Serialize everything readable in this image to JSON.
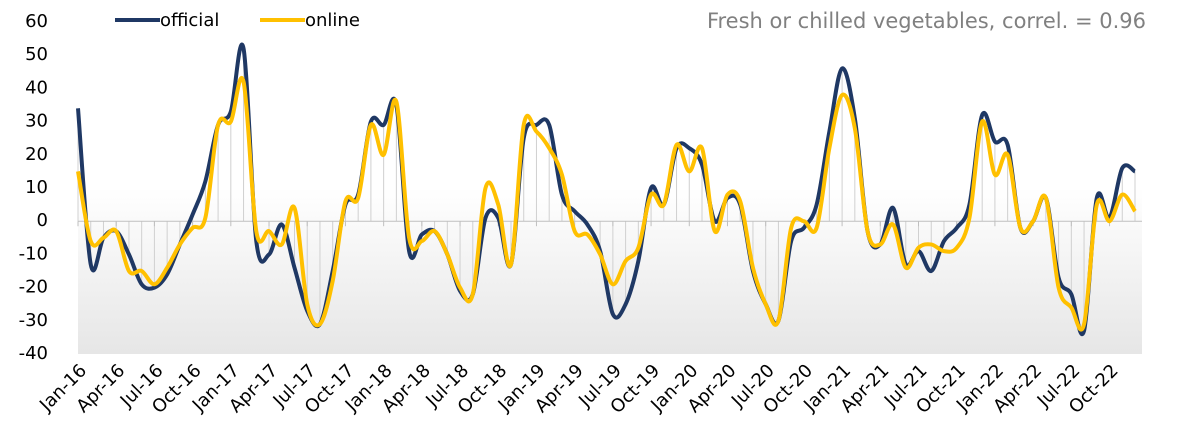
{
  "chart_data": {
    "type": "line",
    "title": "Fresh or chilled vegetables, correl. = 0.96",
    "categories": [
      "Jan-16",
      null,
      null,
      "Apr-16",
      null,
      null,
      "Jul-16",
      null,
      null,
      "Oct-16",
      null,
      null,
      "Jan-17",
      null,
      null,
      "Apr-17",
      null,
      null,
      "Jul-17",
      null,
      null,
      "Oct-17",
      null,
      null,
      "Jan-18",
      null,
      null,
      "Apr-18",
      null,
      null,
      "Jul-18",
      null,
      null,
      "Oct-18",
      null,
      null,
      "Jan-19",
      null,
      null,
      "Apr-19",
      null,
      null,
      "Jul-19",
      null,
      null,
      "Oct-19",
      null,
      null,
      "Jan-20",
      null,
      null,
      "Apr-20",
      null,
      null,
      "Jul-20",
      null,
      null,
      "Oct-20",
      null,
      null,
      "Jan-21",
      null,
      null,
      "Apr-21",
      null,
      null,
      "Jul-21",
      null,
      null,
      "Oct-21",
      null,
      null,
      "Jan-22",
      null,
      null,
      "Apr-22",
      null,
      null,
      "Jul-22",
      null,
      null,
      "Oct-22",
      null,
      null
    ],
    "series": [
      {
        "name": "official",
        "color": "#1f3864",
        "values": [
          34,
          -13,
          -5,
          -3,
          -10,
          -19,
          -20,
          -16,
          -7,
          2,
          12,
          29,
          33,
          52,
          -6,
          -10,
          -1,
          -14,
          -27,
          -31,
          -15,
          5,
          8,
          30,
          29,
          35,
          -9,
          -4,
          -3,
          -10,
          -21,
          -22,
          1,
          1,
          -13,
          25,
          29,
          29,
          8,
          3,
          -1,
          -9,
          -28,
          -25,
          -12,
          10,
          5,
          22,
          22,
          17,
          0,
          7,
          5,
          -15,
          -25,
          -30,
          -6,
          -2,
          5,
          27,
          46,
          31,
          -3,
          -7,
          4,
          -13,
          -9,
          -15,
          -6,
          -2,
          5,
          32,
          24,
          23,
          -2,
          0,
          7,
          -17,
          -22,
          -33,
          7,
          1,
          16,
          15
        ]
      },
      {
        "name": "online",
        "color": "#ffc000",
        "values": [
          15,
          -6,
          -5,
          -3,
          -15,
          -15,
          -19,
          -14,
          -7,
          -2,
          1,
          29,
          30,
          42,
          -3,
          -3,
          -7,
          4,
          -25,
          -31,
          -18,
          6,
          7,
          29,
          20,
          36,
          -5,
          -6,
          -3,
          -10,
          -20,
          -22,
          10,
          5,
          -13,
          29,
          27,
          22,
          14,
          -3,
          -4,
          -10,
          -19,
          -12,
          -8,
          8,
          5,
          23,
          15,
          22,
          -3,
          8,
          6,
          -14,
          -25,
          -30,
          -2,
          0,
          -2,
          22,
          38,
          28,
          -3,
          -7,
          -1,
          -14,
          -8,
          -7,
          -9,
          -8,
          1,
          30,
          14,
          20,
          -2,
          0,
          7,
          -20,
          -26,
          -31,
          5,
          0,
          8,
          3
        ]
      }
    ],
    "ylim": [
      -40,
      60
    ],
    "yticks": [
      -40,
      -30,
      -20,
      -10,
      0,
      10,
      20,
      30,
      40,
      50,
      60
    ]
  }
}
